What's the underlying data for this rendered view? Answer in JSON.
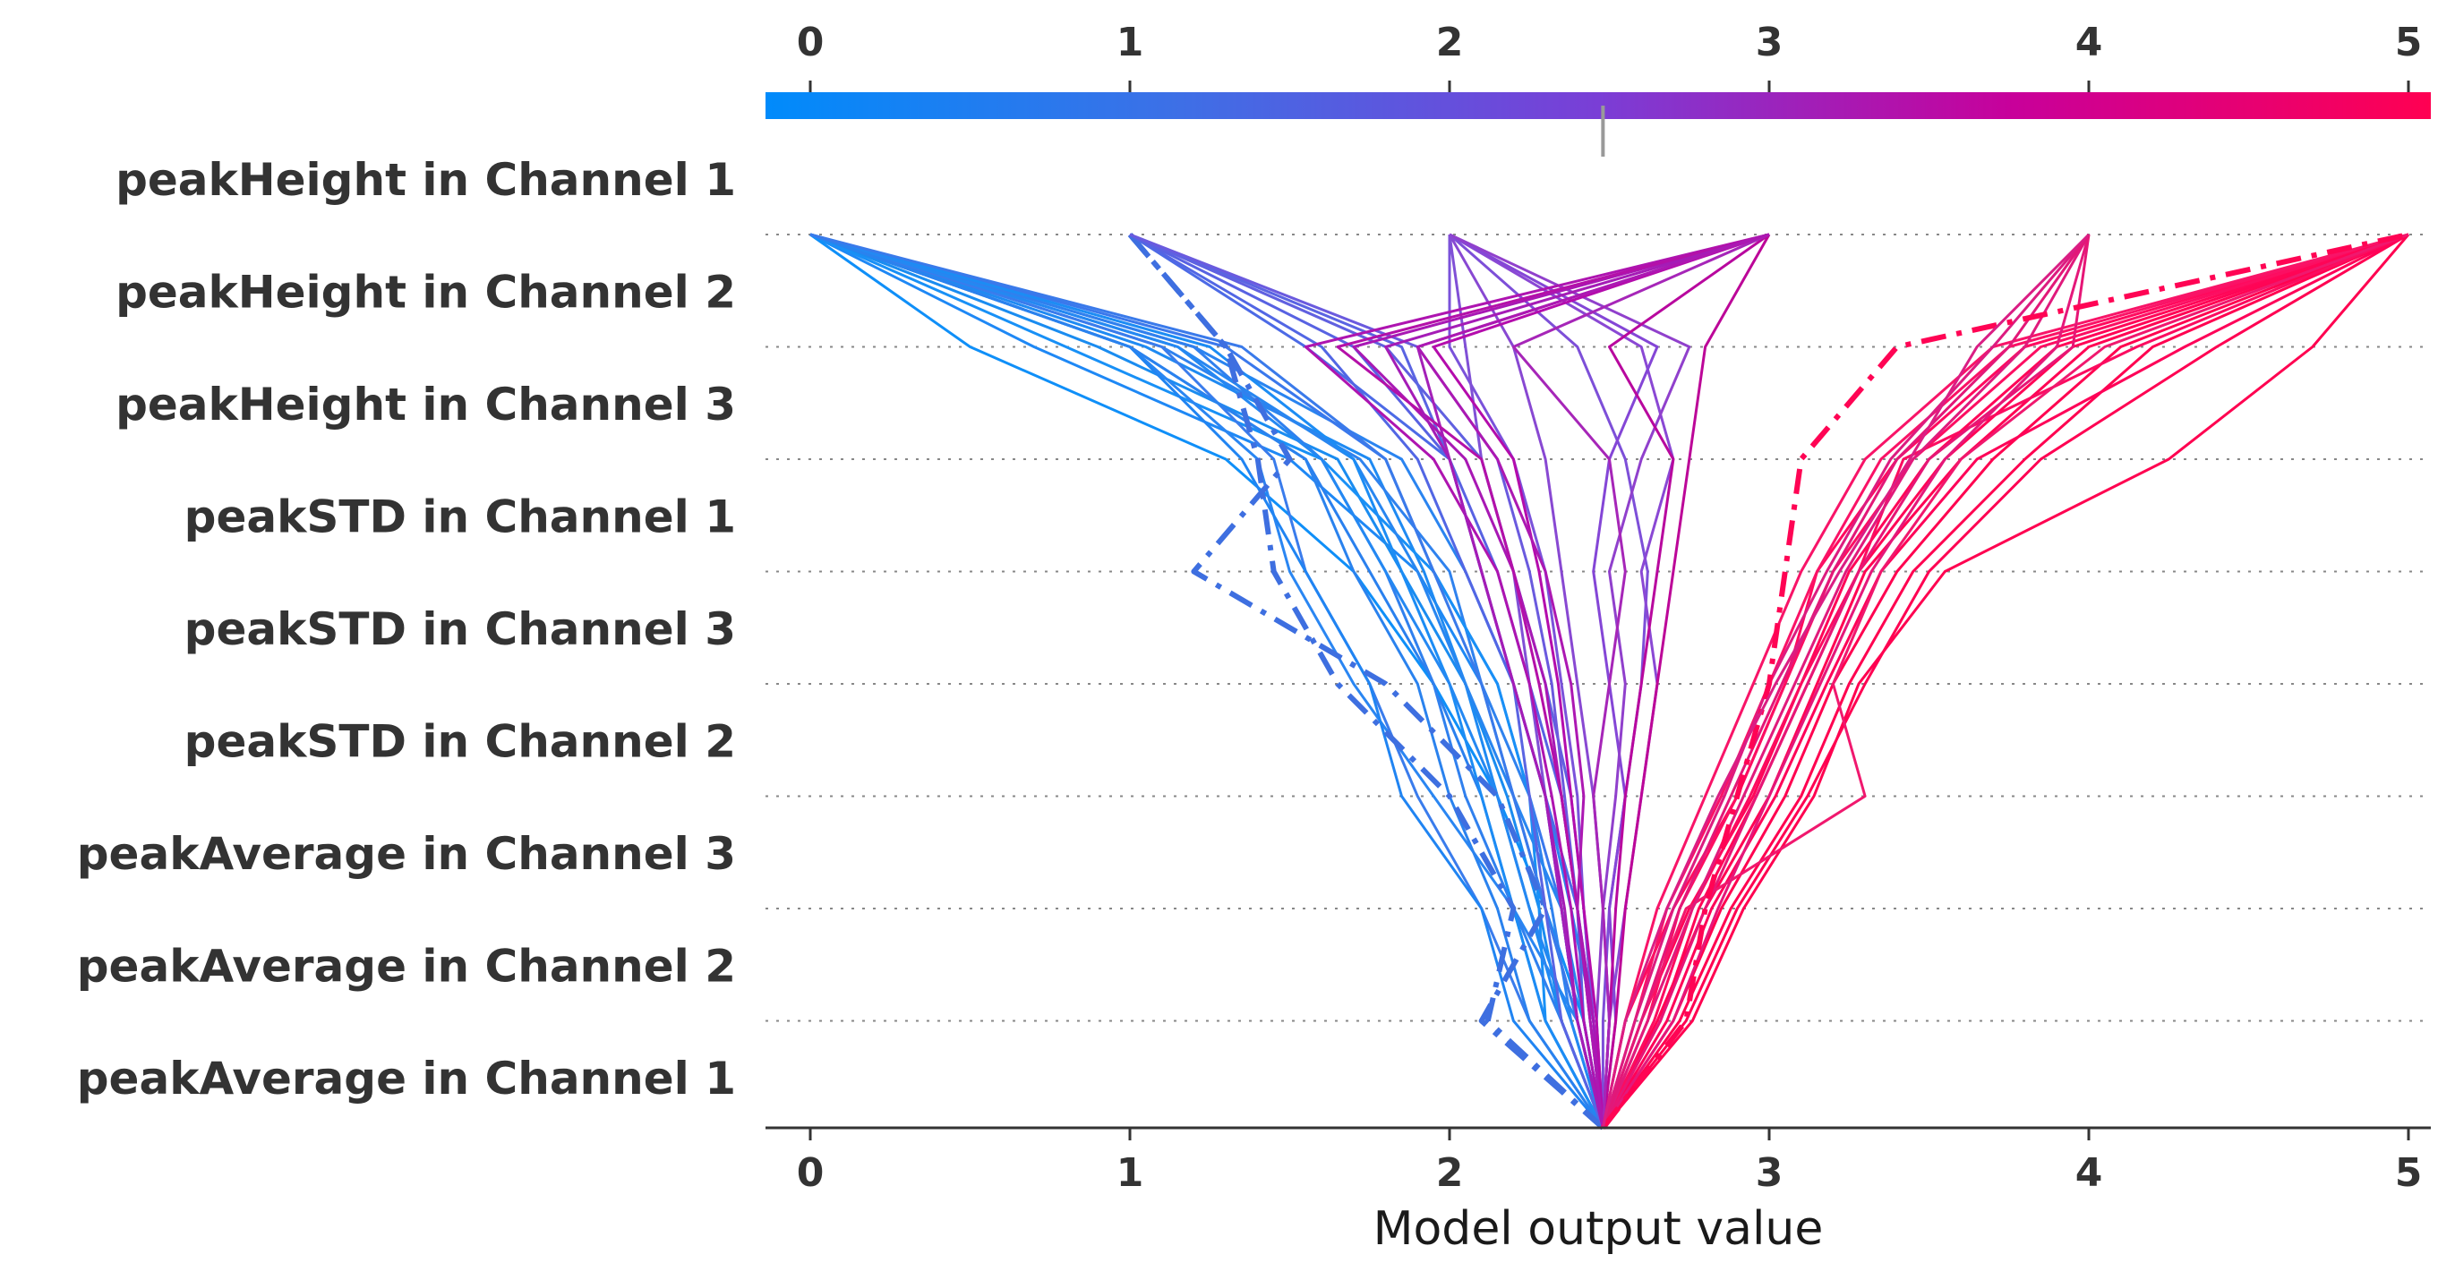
{
  "chart_data": {
    "type": "line",
    "title": "",
    "xlabel": "Model output value",
    "ylabel": "",
    "xlim": [
      -0.15,
      5.1
    ],
    "x_ticks": [
      0,
      1,
      2,
      3,
      4,
      5
    ],
    "x_tick_labels": [
      "0",
      "1",
      "2",
      "3",
      "4",
      "5"
    ],
    "base_value": 2.48,
    "features": [
      "peakHeight in Channel 1",
      "peakHeight in Channel 2",
      "peakHeight in Channel 3",
      "peakSTD in Channel 1",
      "peakSTD in Channel 3",
      "peakSTD in Channel 2",
      "peakAverage in Channel 3",
      "peakAverage in Channel 2",
      "peakAverage in Channel 1"
    ],
    "grid": "dotted horizontal lines between features",
    "colorbar": {
      "position": "top",
      "stops": [
        "#008bfb",
        "#7a3ed6",
        "#b7009e",
        "#ff0052"
      ],
      "range": [
        0,
        5
      ]
    },
    "series": [
      {
        "values": [
          2.48,
          2.4,
          2.3,
          2.2,
          2.1,
          1.9,
          1.5,
          0.7,
          0.0
        ],
        "color": "#1e88f5",
        "dash": "solid"
      },
      {
        "values": [
          2.48,
          2.35,
          2.28,
          2.18,
          2.05,
          1.85,
          1.65,
          0.9,
          0.0
        ],
        "color": "#1a8cf0",
        "dash": "solid"
      },
      {
        "values": [
          2.48,
          2.45,
          2.38,
          2.3,
          2.2,
          2.05,
          1.85,
          1.2,
          0.0
        ],
        "color": "#2a84f0",
        "dash": "solid"
      },
      {
        "values": [
          2.48,
          2.3,
          2.2,
          2.1,
          1.95,
          1.75,
          1.55,
          1.0,
          0.0
        ],
        "color": "#2a80ee",
        "dash": "solid"
      },
      {
        "values": [
          2.48,
          2.4,
          2.35,
          2.25,
          2.15,
          1.95,
          1.8,
          1.3,
          0.0
        ],
        "color": "#3a78ec",
        "dash": "solid"
      },
      {
        "values": [
          2.48,
          2.42,
          2.3,
          2.15,
          1.95,
          1.7,
          1.3,
          0.5,
          0.0
        ],
        "color": "#0f8ff8",
        "dash": "solid"
      },
      {
        "values": [
          2.48,
          2.35,
          2.25,
          2.15,
          2.05,
          1.92,
          1.75,
          1.05,
          0.0
        ],
        "color": "#1f8af2",
        "dash": "solid"
      },
      {
        "values": [
          2.48,
          2.38,
          2.32,
          2.25,
          2.1,
          2.0,
          1.72,
          1.1,
          0.0
        ],
        "color": "#2f82ee",
        "dash": "solid"
      },
      {
        "values": [
          2.48,
          2.3,
          2.28,
          2.25,
          2.15,
          1.95,
          1.6,
          0.8,
          0.0
        ],
        "color": "#1890f6",
        "dash": "solid"
      },
      {
        "values": [
          2.48,
          2.4,
          2.2,
          1.95,
          1.7,
          1.5,
          1.4,
          1.0,
          0.0
        ],
        "color": "#2a86f2",
        "dash": "solid"
      },
      {
        "values": [
          2.48,
          2.25,
          2.1,
          1.9,
          1.75,
          1.55,
          1.45,
          1.1,
          0.0
        ],
        "color": "#3a7cec",
        "dash": "solid"
      },
      {
        "values": [
          2.48,
          2.2,
          2.1,
          1.85,
          1.75,
          1.55,
          1.35,
          1.0,
          0.0
        ],
        "color": "#2084f2",
        "dash": "solid"
      },
      {
        "values": [
          2.48,
          2.35,
          2.2,
          2.05,
          1.95,
          1.8,
          1.6,
          1.2,
          0.0
        ],
        "color": "#3080ee",
        "dash": "solid"
      },
      {
        "values": [
          2.48,
          2.42,
          2.35,
          2.2,
          2.05,
          1.9,
          1.7,
          1.15,
          0.0
        ],
        "color": "#2886f0",
        "dash": "solid"
      },
      {
        "values": [
          2.48,
          2.3,
          2.2,
          2.1,
          2.0,
          1.85,
          1.7,
          1.25,
          0.0
        ],
        "color": "#1c8cf4",
        "dash": "solid"
      },
      {
        "values": [
          2.48,
          2.38,
          2.25,
          2.15,
          2.0,
          1.8,
          1.6,
          1.15,
          0.0
        ],
        "color": "#2488f2",
        "dash": "solid"
      },
      {
        "values": [
          2.48,
          2.25,
          2.15,
          2.0,
          1.9,
          1.7,
          1.55,
          1.0,
          0.0
        ],
        "color": "#2a82ee",
        "dash": "solid"
      },
      {
        "values": [
          2.48,
          2.4,
          2.3,
          2.2,
          2.1,
          1.95,
          1.8,
          1.35,
          0.0
        ],
        "color": "#3a7aea",
        "dash": "solid"
      },
      {
        "values": [
          2.48,
          2.1,
          2.3,
          2.15,
          1.8,
          1.2,
          1.5,
          1.3,
          1.0
        ],
        "color": "#3e6fe0",
        "dash": "dashdot",
        "width": 6
      },
      {
        "values": [
          2.48,
          2.12,
          2.2,
          2.0,
          1.65,
          1.45,
          1.4,
          1.3,
          1.0
        ],
        "color": "#3e6fe0",
        "dash": "dashdot",
        "width": 6
      },
      {
        "values": [
          2.48,
          2.45,
          2.4,
          2.3,
          2.2,
          2.1,
          2.0,
          1.55,
          1.0
        ],
        "color": "#4c6ae6",
        "dash": "solid"
      },
      {
        "values": [
          2.48,
          2.4,
          2.35,
          2.3,
          2.2,
          2.05,
          1.9,
          1.6,
          1.0
        ],
        "color": "#5266e4",
        "dash": "solid"
      },
      {
        "values": [
          2.48,
          2.42,
          2.4,
          2.35,
          2.25,
          2.15,
          2.0,
          1.7,
          1.0
        ],
        "color": "#5862e2",
        "dash": "solid"
      },
      {
        "values": [
          2.48,
          2.45,
          2.42,
          2.38,
          2.3,
          2.2,
          2.1,
          1.8,
          1.0
        ],
        "color": "#6060e0",
        "dash": "solid"
      },
      {
        "values": [
          2.48,
          2.35,
          2.3,
          2.25,
          2.2,
          2.1,
          2.0,
          1.85,
          1.0
        ],
        "color": "#5a64e2",
        "dash": "solid"
      },
      {
        "values": [
          2.48,
          2.44,
          2.4,
          2.36,
          2.32,
          2.25,
          2.15,
          1.9,
          1.0
        ],
        "color": "#6a5ade",
        "dash": "solid"
      },
      {
        "values": [
          2.48,
          2.48,
          2.5,
          2.55,
          2.6,
          2.62,
          2.55,
          2.4,
          2.0
        ],
        "color": "#7d4fd8",
        "dash": "solid"
      },
      {
        "values": [
          2.48,
          2.5,
          2.55,
          2.6,
          2.65,
          2.6,
          2.7,
          2.6,
          2.0
        ],
        "color": "#8a48d4",
        "dash": "solid"
      },
      {
        "values": [
          2.48,
          2.52,
          2.5,
          2.55,
          2.5,
          2.45,
          2.5,
          2.65,
          2.0
        ],
        "color": "#8446d6",
        "dash": "solid"
      },
      {
        "values": [
          2.48,
          2.46,
          2.48,
          2.52,
          2.55,
          2.5,
          2.6,
          2.75,
          2.0
        ],
        "color": "#9040cc",
        "dash": "solid"
      },
      {
        "values": [
          2.48,
          2.45,
          2.42,
          2.4,
          2.35,
          2.3,
          2.2,
          2.0,
          2.0
        ],
        "color": "#7a52da",
        "dash": "solid"
      },
      {
        "values": [
          2.48,
          2.4,
          2.35,
          2.3,
          2.25,
          2.2,
          2.1,
          2.05,
          2.0
        ],
        "color": "#8050d6",
        "dash": "solid"
      },
      {
        "values": [
          2.48,
          2.5,
          2.48,
          2.45,
          2.4,
          2.35,
          2.3,
          2.2,
          2.0
        ],
        "color": "#8848d2",
        "dash": "solid"
      },
      {
        "values": [
          2.48,
          2.4,
          2.35,
          2.3,
          2.2,
          2.1,
          2.0,
          1.9,
          3.0
        ],
        "color": "#a420b8",
        "dash": "solid"
      },
      {
        "values": [
          2.48,
          2.45,
          2.4,
          2.35,
          2.3,
          2.2,
          2.05,
          1.7,
          3.0
        ],
        "color": "#a818b4",
        "dash": "solid"
      },
      {
        "values": [
          2.48,
          2.42,
          2.38,
          2.32,
          2.25,
          2.15,
          1.95,
          1.55,
          3.0
        ],
        "color": "#ae14b0",
        "dash": "solid"
      },
      {
        "values": [
          2.48,
          2.44,
          2.4,
          2.35,
          2.28,
          2.2,
          2.1,
          1.65,
          3.0
        ],
        "color": "#b410a8",
        "dash": "solid"
      },
      {
        "values": [
          2.48,
          2.4,
          2.36,
          2.3,
          2.2,
          2.1,
          2.0,
          1.8,
          3.0
        ],
        "color": "#a41cb6",
        "dash": "solid"
      },
      {
        "values": [
          2.48,
          2.46,
          2.42,
          2.38,
          2.34,
          2.28,
          2.2,
          1.95,
          3.0
        ],
        "color": "#b40cac",
        "dash": "solid"
      },
      {
        "values": [
          2.48,
          2.5,
          2.52,
          2.55,
          2.6,
          2.65,
          2.7,
          2.5,
          3.0
        ],
        "color": "#b8089e",
        "dash": "solid"
      },
      {
        "values": [
          2.48,
          2.52,
          2.55,
          2.6,
          2.65,
          2.7,
          2.75,
          2.8,
          3.0
        ],
        "color": "#bc0698",
        "dash": "solid"
      },
      {
        "values": [
          2.48,
          2.5,
          2.48,
          2.45,
          2.5,
          2.55,
          2.5,
          2.2,
          3.0
        ],
        "color": "#a626b8",
        "dash": "solid"
      },
      {
        "values": [
          2.48,
          2.44,
          2.4,
          2.42,
          2.38,
          2.3,
          2.15,
          1.9,
          3.0
        ],
        "color": "#ac18b2",
        "dash": "solid"
      },
      {
        "values": [
          2.48,
          2.55,
          2.7,
          2.9,
          3.05,
          3.15,
          3.4,
          3.8,
          5.0
        ],
        "color": "#ff0a5e",
        "dash": "solid"
      },
      {
        "values": [
          2.48,
          2.6,
          2.75,
          2.95,
          3.1,
          3.25,
          3.5,
          3.9,
          5.0
        ],
        "color": "#ff0658",
        "dash": "solid"
      },
      {
        "values": [
          2.48,
          2.65,
          2.8,
          3.0,
          3.15,
          3.3,
          3.6,
          4.0,
          5.0
        ],
        "color": "#ff0454",
        "dash": "solid"
      },
      {
        "values": [
          2.48,
          2.7,
          2.85,
          3.05,
          3.2,
          3.4,
          3.7,
          4.1,
          5.0
        ],
        "color": "#ff0250",
        "dash": "solid"
      },
      {
        "values": [
          2.48,
          2.62,
          2.72,
          2.9,
          3.05,
          3.2,
          3.45,
          3.85,
          5.0
        ],
        "color": "#fc0e62",
        "dash": "solid"
      },
      {
        "values": [
          2.48,
          2.58,
          2.68,
          2.85,
          3.0,
          3.15,
          3.35,
          3.75,
          5.0
        ],
        "color": "#fa1266",
        "dash": "solid"
      },
      {
        "values": [
          2.48,
          2.66,
          2.78,
          2.96,
          3.12,
          3.28,
          3.55,
          3.95,
          5.0
        ],
        "color": "#ff0456",
        "dash": "solid"
      },
      {
        "values": [
          2.48,
          2.55,
          2.65,
          2.8,
          2.95,
          3.1,
          3.3,
          3.7,
          5.0
        ],
        "color": "#f81468",
        "dash": "solid"
      },
      {
        "values": [
          2.48,
          2.72,
          2.88,
          3.1,
          3.25,
          3.45,
          3.8,
          4.2,
          5.0
        ],
        "color": "#ff0050",
        "dash": "solid"
      },
      {
        "values": [
          2.48,
          2.74,
          2.9,
          3.12,
          3.3,
          3.5,
          3.85,
          4.4,
          5.0
        ],
        "color": "#ff0052",
        "dash": "solid"
      },
      {
        "values": [
          2.48,
          2.68,
          2.82,
          3.02,
          3.18,
          3.35,
          3.65,
          4.3,
          5.0
        ],
        "color": "#fe0258",
        "dash": "solid"
      },
      {
        "values": [
          2.48,
          2.76,
          2.92,
          3.14,
          3.28,
          3.55,
          4.25,
          4.7,
          5.0
        ],
        "color": "#ff0050",
        "dash": "solid"
      },
      {
        "values": [
          2.48,
          2.64,
          2.76,
          2.94,
          3.1,
          3.28,
          3.42,
          4.15,
          5.0
        ],
        "color": "#fb0c60",
        "dash": "solid"
      },
      {
        "values": [
          2.48,
          2.6,
          2.74,
          3.3,
          3.2,
          3.35,
          3.6,
          4.05,
          5.0
        ],
        "color": "#f0186e",
        "dash": "solid"
      },
      {
        "values": [
          2.48,
          2.7,
          2.84,
          3.0,
          3.16,
          3.32,
          3.55,
          3.9,
          4.0
        ],
        "color": "#e4187a",
        "dash": "solid"
      },
      {
        "values": [
          2.48,
          2.62,
          2.76,
          2.92,
          3.08,
          3.24,
          3.45,
          3.8,
          4.0
        ],
        "color": "#e01a7c",
        "dash": "solid"
      },
      {
        "values": [
          2.48,
          2.66,
          2.8,
          2.96,
          3.12,
          3.28,
          3.5,
          3.95,
          4.0
        ],
        "color": "#e61676",
        "dash": "solid"
      },
      {
        "values": [
          2.48,
          2.58,
          2.7,
          2.86,
          3.0,
          3.18,
          3.38,
          3.7,
          4.0
        ],
        "color": "#dc1c80",
        "dash": "solid"
      },
      {
        "values": [
          2.48,
          2.6,
          2.72,
          2.88,
          3.04,
          3.2,
          3.4,
          3.75,
          4.0
        ],
        "color": "#e21878",
        "dash": "solid"
      },
      {
        "values": [
          2.48,
          2.74,
          2.8,
          2.9,
          3.0,
          3.05,
          3.1,
          3.4,
          5.0
        ],
        "color": "#ff0454",
        "dash": "dashdot",
        "width": 6
      },
      {
        "values": [
          2.48,
          2.55,
          2.68,
          2.84,
          3.02,
          3.22,
          3.44,
          3.65,
          4.0
        ],
        "color": "#da1e84",
        "dash": "solid"
      }
    ]
  }
}
